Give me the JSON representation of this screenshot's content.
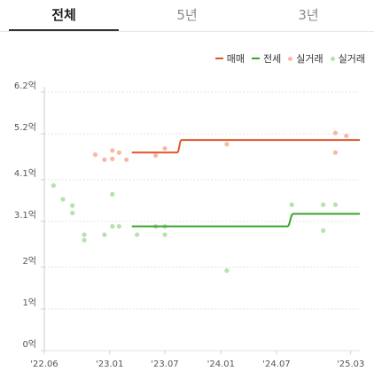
{
  "tabs": [
    {
      "label": "전체",
      "active": true
    },
    {
      "label": "5년",
      "active": false
    },
    {
      "label": "3년",
      "active": false
    }
  ],
  "legend": [
    {
      "label": "매매",
      "kind": "line",
      "color": "#e0562b"
    },
    {
      "label": "전세",
      "kind": "line",
      "color": "#3aa32e"
    },
    {
      "label": "실거래",
      "kind": "dot",
      "color": "#f6b9a6"
    },
    {
      "label": "실거래",
      "kind": "dot",
      "color": "#b6e2ae"
    }
  ],
  "chart_data": {
    "type": "line",
    "title": "",
    "xlabel": "",
    "ylabel": "",
    "x_ticks": [
      "'22.06",
      "'23.01",
      "'23.07",
      "'24.01",
      "'24.07",
      "'25.03"
    ],
    "x_tick_dates": [
      "2022-06-01",
      "2023-01-01",
      "2023-07-01",
      "2024-01-01",
      "2024-07-01",
      "2025-03-01"
    ],
    "x_range": [
      "2022-06-01",
      "2025-03-31"
    ],
    "y_ticks": [
      {
        "value": 0,
        "label": "0억"
      },
      {
        "value": 1,
        "label": "1억"
      },
      {
        "value": 2,
        "label": "2억"
      },
      {
        "value": 3.1,
        "label": "3.1억"
      },
      {
        "value": 4.1,
        "label": "4.1억"
      },
      {
        "value": 5.2,
        "label": "5.2억"
      },
      {
        "value": 6.2,
        "label": "6.2억"
      }
    ],
    "ylim": [
      0,
      6.2
    ],
    "y_unit": "억",
    "grid": "horizontal-dashed",
    "legend_position": "top-right",
    "series": [
      {
        "name": "매매",
        "kind": "line",
        "color": "#e0562b",
        "points": [
          {
            "x": "2023-03-15",
            "y": 4.75
          },
          {
            "x": "2023-08-10",
            "y": 4.75
          },
          {
            "x": "2023-08-25",
            "y": 5.05
          },
          {
            "x": "2025-03-31",
            "y": 5.05
          }
        ]
      },
      {
        "name": "전세",
        "kind": "line",
        "color": "#3aa32e",
        "points": [
          {
            "x": "2023-03-15",
            "y": 2.98
          },
          {
            "x": "2024-08-05",
            "y": 2.98
          },
          {
            "x": "2024-08-25",
            "y": 3.28
          },
          {
            "x": "2025-03-31",
            "y": 3.28
          }
        ]
      },
      {
        "name": "실거래",
        "kind": "scatter",
        "color": "#f6b9a6",
        "points": [
          {
            "x": "2022-11-15",
            "y": 4.7
          },
          {
            "x": "2022-12-15",
            "y": 4.58
          },
          {
            "x": "2023-01-10",
            "y": 4.8
          },
          {
            "x": "2023-01-10",
            "y": 4.6
          },
          {
            "x": "2023-02-01",
            "y": 4.75
          },
          {
            "x": "2023-02-25",
            "y": 4.58
          },
          {
            "x": "2023-06-01",
            "y": 4.68
          },
          {
            "x": "2023-07-01",
            "y": 4.85
          },
          {
            "x": "2024-01-20",
            "y": 4.95
          },
          {
            "x": "2025-01-10",
            "y": 5.22
          },
          {
            "x": "2025-01-10",
            "y": 4.75
          },
          {
            "x": "2025-02-15",
            "y": 5.15
          }
        ]
      },
      {
        "name": "실거래",
        "kind": "scatter",
        "color": "#b6e2ae",
        "points": [
          {
            "x": "2022-07-01",
            "y": 3.96
          },
          {
            "x": "2022-08-01",
            "y": 3.63
          },
          {
            "x": "2022-09-01",
            "y": 3.48
          },
          {
            "x": "2022-09-01",
            "y": 3.3
          },
          {
            "x": "2022-10-10",
            "y": 2.78
          },
          {
            "x": "2022-10-10",
            "y": 2.65
          },
          {
            "x": "2022-12-15",
            "y": 2.78
          },
          {
            "x": "2023-01-10",
            "y": 3.75
          },
          {
            "x": "2023-01-10",
            "y": 2.98
          },
          {
            "x": "2023-02-01",
            "y": 2.98
          },
          {
            "x": "2023-04-01",
            "y": 2.78
          },
          {
            "x": "2023-06-01",
            "y": 2.98
          },
          {
            "x": "2023-07-01",
            "y": 2.98
          },
          {
            "x": "2023-07-01",
            "y": 2.78
          },
          {
            "x": "2024-01-20",
            "y": 1.92
          },
          {
            "x": "2024-08-20",
            "y": 3.5
          },
          {
            "x": "2024-12-01",
            "y": 3.5
          },
          {
            "x": "2024-12-01",
            "y": 2.88
          },
          {
            "x": "2025-01-10",
            "y": 3.5
          }
        ]
      }
    ]
  }
}
